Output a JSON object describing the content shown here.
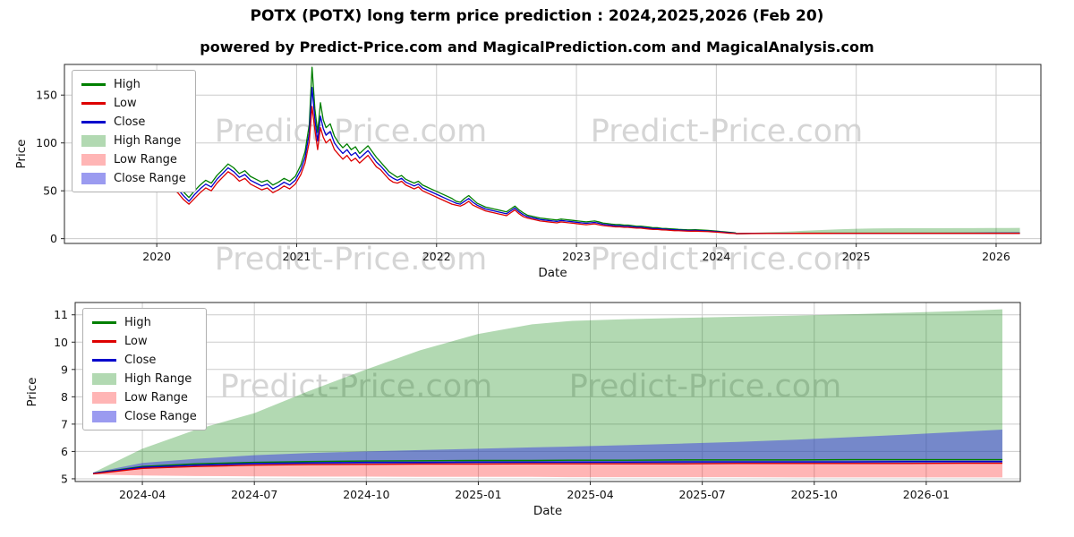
{
  "page": {
    "title": "POTX (POTX) long term price prediction : 2024,2025,2026 (Feb 20)",
    "subtitle": "powered by Predict-Price.com and MagicalPrediction.com and MagicalAnalysis.com",
    "watermark_text": "Predict-Price.com"
  },
  "colors": {
    "high": "#007f00",
    "low": "#dd0000",
    "close": "#0000cc",
    "high_range_fill": "rgba(0,128,0,0.30)",
    "low_range_fill": "rgba(255,30,30,0.33)",
    "close_range_fill": "rgba(55,55,225,0.50)",
    "grid": "#cccccc",
    "frame": "#262626",
    "tick_text": "#111111",
    "watermark": "rgba(185,185,185,0.60)"
  },
  "legend": {
    "items": [
      {
        "key": "high",
        "label": "High",
        "swatch": "line"
      },
      {
        "key": "low",
        "label": "Low",
        "swatch": "line"
      },
      {
        "key": "close",
        "label": "Close",
        "swatch": "line"
      },
      {
        "key": "high_range",
        "label": "High Range",
        "swatch": "patch"
      },
      {
        "key": "low_range",
        "label": "Low Range",
        "swatch": "patch"
      },
      {
        "key": "close_range",
        "label": "Close Range",
        "swatch": "patch"
      }
    ]
  },
  "chart_data": {
    "type": "line",
    "description": "Historical High/Low/Close of POTX plus 2024-2026 forecast ranges",
    "history_format": [
      "x_decimal_year",
      "high",
      "low",
      "close"
    ],
    "history": [
      [
        2019.67,
        153,
        142,
        148
      ],
      [
        2019.71,
        144,
        132,
        138
      ],
      [
        2019.75,
        134,
        122,
        128
      ],
      [
        2019.79,
        127,
        115,
        121
      ],
      [
        2019.83,
        118,
        106,
        112
      ],
      [
        2019.87,
        109,
        99,
        104
      ],
      [
        2019.91,
        102,
        92,
        97
      ],
      [
        2019.95,
        95,
        85,
        90
      ],
      [
        2019.99,
        85,
        75,
        80
      ],
      [
        2020.03,
        73,
        63,
        68
      ],
      [
        2020.07,
        64,
        56,
        60
      ],
      [
        2020.11,
        60,
        52,
        56
      ],
      [
        2020.15,
        56,
        48,
        52
      ],
      [
        2020.19,
        49,
        41,
        45
      ],
      [
        2020.23,
        43,
        36,
        39
      ],
      [
        2020.27,
        50,
        42,
        46
      ],
      [
        2020.31,
        56,
        48,
        52
      ],
      [
        2020.35,
        61,
        53,
        57
      ],
      [
        2020.39,
        58,
        50,
        54
      ],
      [
        2020.43,
        66,
        58,
        62
      ],
      [
        2020.47,
        72,
        64,
        68
      ],
      [
        2020.51,
        78,
        70,
        74
      ],
      [
        2020.55,
        74,
        66,
        70
      ],
      [
        2020.59,
        68,
        60,
        64
      ],
      [
        2020.63,
        71,
        63,
        67
      ],
      [
        2020.67,
        65,
        57,
        61
      ],
      [
        2020.71,
        62,
        54,
        58
      ],
      [
        2020.75,
        59,
        51,
        55
      ],
      [
        2020.79,
        61,
        53,
        57
      ],
      [
        2020.83,
        56,
        48,
        52
      ],
      [
        2020.87,
        59,
        51,
        55
      ],
      [
        2020.91,
        63,
        55,
        59
      ],
      [
        2020.95,
        60,
        52,
        56
      ],
      [
        2020.99,
        65,
        57,
        61
      ],
      [
        2021.03,
        77,
        67,
        72
      ],
      [
        2021.06,
        91,
        79,
        85
      ],
      [
        2021.09,
        119,
        101,
        110
      ],
      [
        2021.11,
        179,
        138,
        158
      ],
      [
        2021.13,
        136,
        114,
        125
      ],
      [
        2021.15,
        111,
        93,
        102
      ],
      [
        2021.17,
        142,
        116,
        128
      ],
      [
        2021.19,
        124,
        106,
        115
      ],
      [
        2021.21,
        116,
        100,
        108
      ],
      [
        2021.24,
        120,
        104,
        112
      ],
      [
        2021.27,
        107,
        93,
        100
      ],
      [
        2021.3,
        100,
        88,
        94
      ],
      [
        2021.33,
        95,
        83,
        89
      ],
      [
        2021.36,
        99,
        87,
        93
      ],
      [
        2021.39,
        93,
        81,
        87
      ],
      [
        2021.42,
        96,
        84,
        90
      ],
      [
        2021.45,
        89,
        79,
        84
      ],
      [
        2021.48,
        93,
        83,
        88
      ],
      [
        2021.51,
        97,
        87,
        92
      ],
      [
        2021.54,
        91,
        81,
        86
      ],
      [
        2021.57,
        85,
        75,
        80
      ],
      [
        2021.6,
        80,
        72,
        76
      ],
      [
        2021.63,
        75,
        67,
        71
      ],
      [
        2021.66,
        70,
        62,
        66
      ],
      [
        2021.69,
        67,
        59,
        63
      ],
      [
        2021.72,
        64,
        58,
        61
      ],
      [
        2021.75,
        66,
        60,
        63
      ],
      [
        2021.78,
        62,
        56,
        59
      ],
      [
        2021.81,
        60,
        54,
        57
      ],
      [
        2021.84,
        58,
        52,
        55
      ],
      [
        2021.87,
        60,
        54,
        57
      ],
      [
        2021.9,
        56,
        50,
        53
      ],
      [
        2021.93,
        54,
        48,
        51
      ],
      [
        2021.96,
        52,
        46,
        49
      ],
      [
        2021.99,
        50,
        44,
        47
      ],
      [
        2022.02,
        48,
        42,
        45
      ],
      [
        2022.05,
        46,
        40,
        43
      ],
      [
        2022.08,
        44,
        38,
        41
      ],
      [
        2022.11,
        42,
        36,
        39
      ],
      [
        2022.14,
        39,
        35,
        37
      ],
      [
        2022.17,
        38,
        34,
        36
      ],
      [
        2022.2,
        42,
        36,
        39
      ],
      [
        2022.23,
        45,
        39,
        42
      ],
      [
        2022.26,
        41,
        35,
        38
      ],
      [
        2022.29,
        37,
        33,
        35
      ],
      [
        2022.32,
        35,
        31,
        33
      ],
      [
        2022.35,
        33,
        29,
        31
      ],
      [
        2022.38,
        32,
        28,
        30
      ],
      [
        2022.41,
        31,
        27,
        29
      ],
      [
        2022.44,
        30,
        26,
        28
      ],
      [
        2022.47,
        29,
        25,
        27
      ],
      [
        2022.5,
        28,
        24,
        26
      ],
      [
        2022.53,
        31,
        27,
        29
      ],
      [
        2022.56,
        34,
        30,
        32
      ],
      [
        2022.59,
        30,
        26,
        28
      ],
      [
        2022.62,
        27,
        23,
        25
      ],
      [
        2022.65,
        24.5,
        21.5,
        23
      ],
      [
        2022.68,
        23.5,
        20.5,
        22
      ],
      [
        2022.71,
        22.5,
        19.5,
        21
      ],
      [
        2022.74,
        21.5,
        18.5,
        20
      ],
      [
        2022.77,
        21,
        18,
        19.5
      ],
      [
        2022.8,
        20.5,
        17.5,
        19
      ],
      [
        2022.83,
        20,
        17,
        18.5
      ],
      [
        2022.86,
        19.5,
        16.5,
        18
      ],
      [
        2022.89,
        20.5,
        17.5,
        19
      ],
      [
        2022.92,
        20,
        17,
        18.5
      ],
      [
        2022.95,
        19.5,
        16.5,
        18
      ],
      [
        2022.98,
        19,
        16,
        17.5
      ],
      [
        2023.01,
        18.5,
        15.5,
        17
      ],
      [
        2023.04,
        18,
        15,
        16.5
      ],
      [
        2023.07,
        17.5,
        14.5,
        16
      ],
      [
        2023.1,
        18,
        15,
        16.5
      ],
      [
        2023.13,
        18.5,
        15.5,
        17
      ],
      [
        2023.16,
        17.5,
        14.5,
        16
      ],
      [
        2023.19,
        16.3,
        13.7,
        15
      ],
      [
        2023.22,
        15.8,
        13.2,
        14.5
      ],
      [
        2023.25,
        15.2,
        12.8,
        14
      ],
      [
        2023.28,
        14.7,
        12.3,
        13.5
      ],
      [
        2023.31,
        14.7,
        12.3,
        13.5
      ],
      [
        2023.34,
        14.2,
        11.8,
        13
      ],
      [
        2023.37,
        14.2,
        11.8,
        13
      ],
      [
        2023.4,
        13.6,
        11.4,
        12.5
      ],
      [
        2023.43,
        13,
        11,
        12
      ],
      [
        2023.46,
        13,
        11,
        12
      ],
      [
        2023.49,
        12.5,
        10.5,
        11.5
      ],
      [
        2023.52,
        12,
        10,
        11
      ],
      [
        2023.55,
        11.4,
        9.6,
        10.5
      ],
      [
        2023.58,
        11.4,
        9.6,
        10.5
      ],
      [
        2023.61,
        10.8,
        9.2,
        10
      ],
      [
        2023.64,
        10.6,
        9,
        9.8
      ],
      [
        2023.67,
        10.3,
        8.7,
        9.5
      ],
      [
        2023.7,
        10,
        8.4,
        9.2
      ],
      [
        2023.73,
        9.7,
        8.3,
        9
      ],
      [
        2023.76,
        9.5,
        8.1,
        8.8
      ],
      [
        2023.79,
        9.3,
        7.9,
        8.6
      ],
      [
        2023.82,
        9.2,
        7.8,
        8.5
      ],
      [
        2023.85,
        9.3,
        7.9,
        8.6
      ],
      [
        2023.88,
        9.1,
        7.7,
        8.4
      ],
      [
        2023.91,
        8.9,
        7.5,
        8.2
      ],
      [
        2023.94,
        8.6,
        7.4,
        8
      ],
      [
        2023.97,
        8.3,
        7.1,
        7.7
      ],
      [
        2024,
        8,
        6.8,
        7.4
      ],
      [
        2024.03,
        7.5,
        6.5,
        7
      ],
      [
        2024.06,
        7.1,
        6.1,
        6.6
      ],
      [
        2024.09,
        6.7,
        5.7,
        6.2
      ],
      [
        2024.12,
        6.3,
        5.5,
        5.9
      ],
      [
        2024.14,
        6,
        5.3,
        5.6
      ]
    ],
    "forecast_format": [
      "x_decimal_year",
      "high_line",
      "low_line",
      "close_line",
      "high_range_upper",
      "close_range_upper",
      "low_range_lower"
    ],
    "forecast": [
      [
        2024.14,
        5.2,
        5.18,
        5.2,
        5.22,
        5.22,
        5.16
      ],
      [
        2024.25,
        5.45,
        5.38,
        5.42,
        6.1,
        5.58,
        5.12
      ],
      [
        2024.37,
        5.55,
        5.45,
        5.5,
        6.8,
        5.73,
        5.1
      ],
      [
        2024.5,
        5.6,
        5.5,
        5.56,
        7.4,
        5.86,
        5.09
      ],
      [
        2024.62,
        5.63,
        5.52,
        5.58,
        8.2,
        5.94,
        5.08
      ],
      [
        2024.75,
        5.65,
        5.53,
        5.6,
        9.0,
        6.0,
        5.08
      ],
      [
        2024.87,
        5.66,
        5.54,
        5.6,
        9.7,
        6.05,
        5.07
      ],
      [
        2025.0,
        5.67,
        5.54,
        5.61,
        10.3,
        6.1,
        5.07
      ],
      [
        2025.12,
        5.67,
        5.55,
        5.61,
        10.65,
        6.15,
        5.07
      ],
      [
        2025.21,
        5.68,
        5.55,
        5.61,
        10.78,
        6.18,
        5.06
      ],
      [
        2025.33,
        5.68,
        5.55,
        5.61,
        10.84,
        6.23,
        5.06
      ],
      [
        2025.46,
        5.69,
        5.55,
        5.62,
        10.89,
        6.29,
        5.06
      ],
      [
        2025.58,
        5.69,
        5.56,
        5.62,
        10.93,
        6.35,
        5.06
      ],
      [
        2025.71,
        5.69,
        5.56,
        5.62,
        10.97,
        6.43,
        5.05
      ],
      [
        2025.83,
        5.7,
        5.56,
        5.62,
        11.02,
        6.52,
        5.05
      ],
      [
        2025.96,
        5.7,
        5.56,
        5.63,
        11.08,
        6.62,
        5.05
      ],
      [
        2026.08,
        5.7,
        5.57,
        5.63,
        11.14,
        6.72,
        5.05
      ],
      [
        2026.17,
        5.7,
        5.57,
        5.63,
        11.2,
        6.8,
        5.05
      ]
    ],
    "charts": [
      {
        "name": "top",
        "xlabel": "Date",
        "ylabel": "Price",
        "xlim": [
          2019.34,
          2026.32
        ],
        "ylim": [
          -5,
          182
        ],
        "grid": true,
        "legend_position": "upper-left",
        "x_ticks": [
          {
            "v": 2020,
            "label": "2020"
          },
          {
            "v": 2021,
            "label": "2021"
          },
          {
            "v": 2022,
            "label": "2022"
          },
          {
            "v": 2023,
            "label": "2023"
          },
          {
            "v": 2024,
            "label": "2024"
          },
          {
            "v": 2025,
            "label": "2025"
          },
          {
            "v": 2026,
            "label": "2026"
          }
        ],
        "y_ticks": [
          {
            "v": 0,
            "label": "0"
          },
          {
            "v": 50,
            "label": "50"
          },
          {
            "v": 100,
            "label": "100"
          },
          {
            "v": 150,
            "label": "150"
          }
        ],
        "series": [
          "history",
          "forecast"
        ]
      },
      {
        "name": "bottom",
        "xlabel": "Date",
        "ylabel": "Price",
        "xlim": [
          2024.1,
          2026.21
        ],
        "ylim": [
          4.9,
          11.45
        ],
        "grid": true,
        "legend_position": "upper-left",
        "x_ticks": [
          {
            "v": 2024.25,
            "label": "2024-04"
          },
          {
            "v": 2024.5,
            "label": "2024-07"
          },
          {
            "v": 2024.75,
            "label": "2024-10"
          },
          {
            "v": 2025.0,
            "label": "2025-01"
          },
          {
            "v": 2025.25,
            "label": "2025-04"
          },
          {
            "v": 2025.5,
            "label": "2025-07"
          },
          {
            "v": 2025.75,
            "label": "2025-10"
          },
          {
            "v": 2026.0,
            "label": "2026-01"
          }
        ],
        "y_ticks": [
          {
            "v": 5,
            "label": "5"
          },
          {
            "v": 6,
            "label": "6"
          },
          {
            "v": 7,
            "label": "7"
          },
          {
            "v": 8,
            "label": "8"
          },
          {
            "v": 9,
            "label": "9"
          },
          {
            "v": 10,
            "label": "10"
          },
          {
            "v": 11,
            "label": "11"
          }
        ],
        "series": [
          "forecast"
        ]
      }
    ]
  }
}
